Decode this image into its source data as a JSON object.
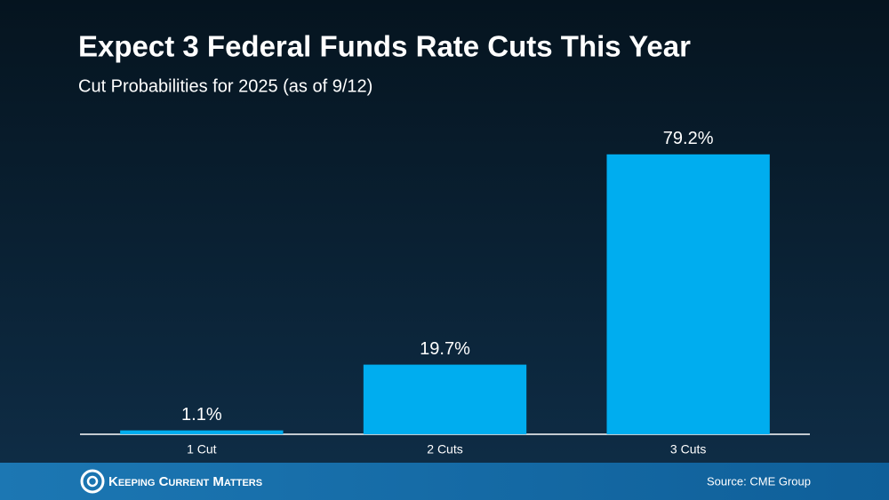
{
  "chart_data": {
    "type": "bar",
    "title": "Expect 3 Federal Funds Rate Cuts This Year",
    "subtitle": "Cut Probabilities for 2025 (as of 9/12)",
    "categories": [
      "1 Cut",
      "2 Cuts",
      "3 Cuts"
    ],
    "values": [
      1.1,
      19.7,
      79.2
    ],
    "value_labels": [
      "1.1%",
      "19.7%",
      "79.2%"
    ],
    "color": "#00adef",
    "ylim": [
      0,
      100
    ],
    "source": "Source: CME Group",
    "brand": "Keeping Current Matters"
  }
}
